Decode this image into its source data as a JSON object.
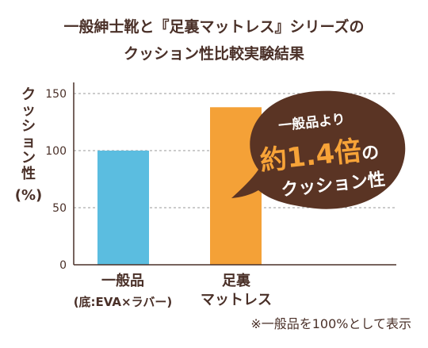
{
  "title": {
    "line1": "一般紳士靴と『足裏マットレス』シリーズの",
    "line2": "クッション性比較実験結果"
  },
  "colors": {
    "text": "#4a3028",
    "bar_general": "#5bbde0",
    "bar_mattress": "#f4a137",
    "callout_bg": "#5a3424",
    "callout_accent": "#f7a338",
    "grid": "#9a9a9a"
  },
  "chart_data": {
    "type": "bar",
    "ylabel_chars": [
      "ク",
      "ッ",
      "シ",
      "ョ",
      "ン",
      "性"
    ],
    "ylabel_unit": "(%)",
    "ylim": [
      0,
      150
    ],
    "yticks": [
      0,
      50,
      100,
      150
    ],
    "grid": true,
    "categories": [
      "一般品",
      "足裏マットレス"
    ],
    "category_lines": [
      [
        "一般品",
        "(底:EVA×ラバー)"
      ],
      [
        "足裏",
        "マットレス"
      ]
    ],
    "values": [
      100,
      138
    ]
  },
  "callout": {
    "line1": "一般品より",
    "line2_big": "約1.4倍",
    "line2_small": "の",
    "line3": "クッション性"
  },
  "note": "※一般品を100%として表示"
}
